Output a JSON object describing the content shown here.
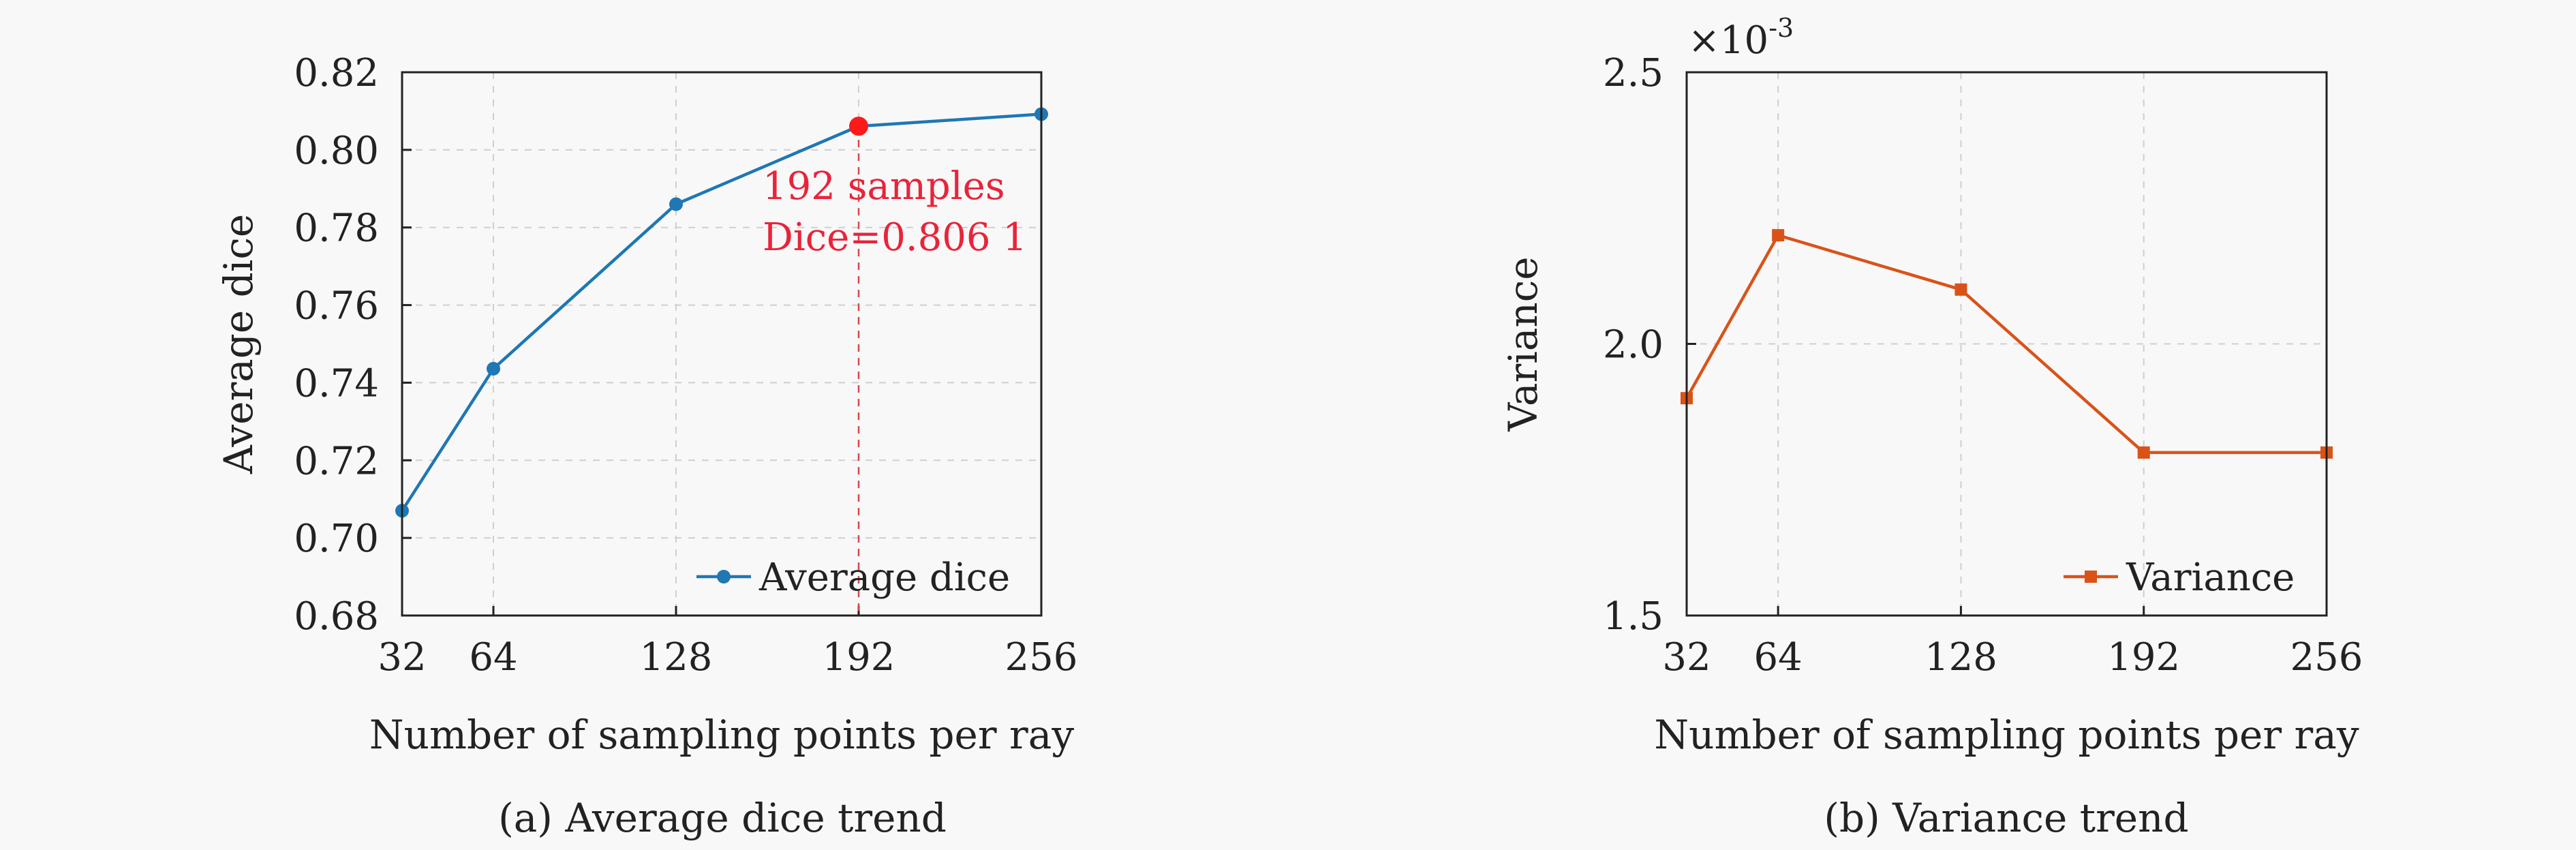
{
  "chart_data": [
    {
      "type": "line",
      "caption": "(a) Average dice trend",
      "xlabel": "Number of sampling points per ray",
      "ylabel": "Average dice",
      "x": [
        32,
        64,
        128,
        192,
        256
      ],
      "xticks": [
        "32",
        "64",
        "128",
        "192",
        "256"
      ],
      "xlim": [
        32,
        256
      ],
      "ylim": [
        0.68,
        0.82
      ],
      "yticks": [
        "0.68",
        "0.70",
        "0.72",
        "0.74",
        "0.76",
        "0.78",
        "0.80",
        "0.82"
      ],
      "series": [
        {
          "name": "Average dice",
          "values": [
            0.707,
            0.7436,
            0.786,
            0.8061,
            0.8092
          ],
          "color": "#1f77b4",
          "marker": "circle"
        }
      ],
      "highlight": {
        "x": 192,
        "y": 0.8061,
        "color": "#ff1a1a",
        "line1": "192 samples",
        "line2": "Dice=0.806 1"
      },
      "grid": true,
      "legend": "bottom-right"
    },
    {
      "type": "line",
      "caption": "(b) Variance trend",
      "xlabel": "Number of sampling points per ray",
      "ylabel": "Variance",
      "scale_label": "×10",
      "scale_exp": "-3",
      "x": [
        32,
        64,
        128,
        192,
        256
      ],
      "xticks": [
        "32",
        "64",
        "128",
        "192",
        "256"
      ],
      "xlim": [
        32,
        256
      ],
      "ylim": [
        1.5,
        2.5
      ],
      "yticks": [
        "1.5",
        "2.0",
        "2.5"
      ],
      "series": [
        {
          "name": "Variance",
          "values": [
            1.9,
            2.2,
            2.1,
            1.8,
            1.8
          ],
          "color": "#d95319",
          "marker": "square"
        }
      ],
      "grid": true,
      "legend": "bottom-right"
    }
  ]
}
